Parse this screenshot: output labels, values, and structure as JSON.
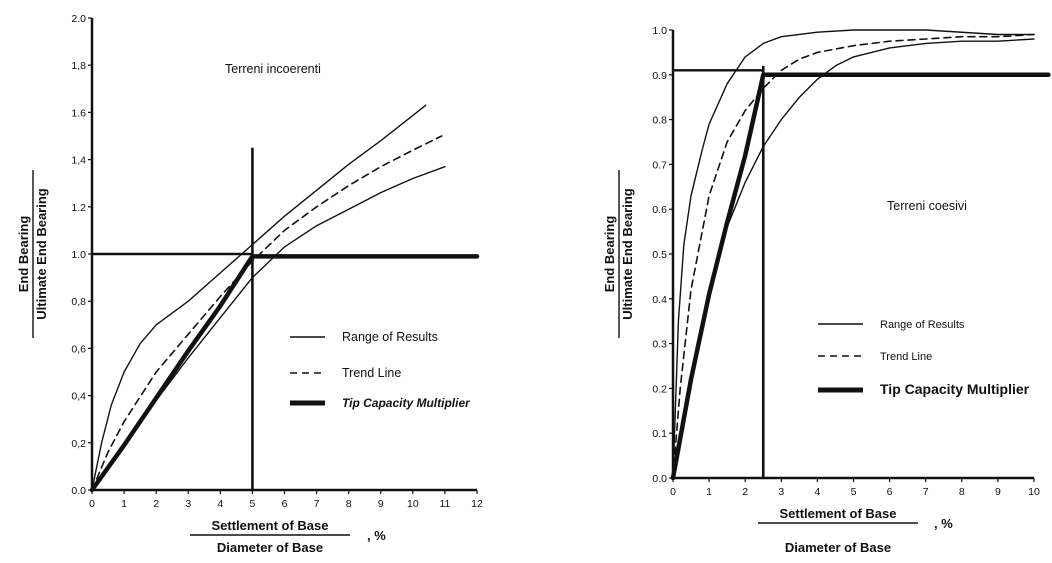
{
  "chart_data": [
    {
      "type": "line",
      "annotation": "Terreni incoerenti",
      "ylabel_top": "End Bearing",
      "ylabel_bottom": "Ultimate End Bearing",
      "xlabel_top": "Settlement of Base",
      "xlabel_bottom": "Diameter of Base",
      "xlabel_unit": ", %",
      "xlim": [
        0,
        12
      ],
      "ylim": [
        0,
        2.0
      ],
      "xticks": [
        "0",
        "1",
        "2",
        "3",
        "4",
        "5",
        "6",
        "7",
        "8",
        "9",
        "10",
        "11",
        "12"
      ],
      "yticks": [
        "0.0",
        "0,2",
        "0,4",
        "0,6",
        "0,8",
        "1.0",
        "1.2",
        "1,4",
        "1.6",
        "1,8",
        "2.0"
      ],
      "grid": false,
      "legend_position": "right",
      "legend": [
        "Range of Results",
        "Trend Line",
        "Tip Capacity Multiplier"
      ],
      "series": [
        {
          "name": "Range of Results",
          "style": "thin",
          "x": [
            0,
            0.3,
            0.6,
            1.0,
            1.5,
            2.0,
            3.0,
            4.0,
            5.0,
            6.0,
            7.0,
            8.0,
            9.0,
            10.4
          ],
          "y": [
            0,
            0.2,
            0.36,
            0.5,
            0.62,
            0.7,
            0.8,
            0.92,
            1.04,
            1.16,
            1.27,
            1.38,
            1.48,
            1.63
          ]
        },
        {
          "name": "Range of Results",
          "style": "thin",
          "x": [
            0,
            1.0,
            2.0,
            3.0,
            4.0,
            5.0,
            6.0,
            7.0,
            8.0,
            9.0,
            10.0,
            11.0
          ],
          "y": [
            0,
            0.19,
            0.38,
            0.56,
            0.73,
            0.9,
            1.03,
            1.12,
            1.19,
            1.26,
            1.32,
            1.37
          ]
        },
        {
          "name": "Trend Line",
          "style": "dashed",
          "x": [
            0,
            0.5,
            1.0,
            2.0,
            3.0,
            4.0,
            5.0,
            6.0,
            7.0,
            8.0,
            9.0,
            10.0,
            10.9
          ],
          "y": [
            0,
            0.16,
            0.29,
            0.5,
            0.66,
            0.82,
            0.97,
            1.1,
            1.2,
            1.29,
            1.37,
            1.44,
            1.5
          ]
        },
        {
          "name": "Tip Capacity Multiplier",
          "style": "thick",
          "x": [
            0,
            1.0,
            2.0,
            3.0,
            4.0,
            4.9,
            5.0,
            12
          ],
          "y": [
            0,
            0.19,
            0.39,
            0.59,
            0.78,
            0.97,
            0.99,
            0.99
          ]
        }
      ],
      "reference_lines": [
        {
          "orientation": "vertical",
          "x": 5.0,
          "y_range": [
            0,
            1.45
          ]
        },
        {
          "orientation": "horizontal",
          "y": 1.0,
          "x_range": [
            0,
            5.0
          ]
        }
      ]
    },
    {
      "type": "line",
      "annotation": "Terreni coesivi",
      "ylabel_top": "End Bearing",
      "ylabel_bottom": "Ultimate End Bearing",
      "xlabel_top": "Settlement of Base",
      "xlabel_bottom": "Diameter of Base",
      "xlabel_unit": ", %",
      "xlim": [
        0,
        10
      ],
      "ylim": [
        0,
        1.0
      ],
      "xticks": [
        "0",
        "1",
        "2",
        "3",
        "4",
        "5",
        "6",
        "7",
        "8",
        "9",
        "10"
      ],
      "yticks": [
        "0.0",
        "0.1",
        "0.2",
        "0.3",
        "0.4",
        "0.5",
        "0.6",
        "0.7",
        "0.8",
        "0.9",
        "1.0"
      ],
      "grid": false,
      "legend_position": "right",
      "legend": [
        "Range of Results",
        "Trend Line",
        "Tip Capacity Multiplier"
      ],
      "series": [
        {
          "name": "Range of Results",
          "style": "thin",
          "x": [
            0,
            0.15,
            0.3,
            0.5,
            0.8,
            1.0,
            1.5,
            2.0,
            2.5,
            3.0,
            4.0,
            5.0,
            7.0,
            9.0,
            10.0
          ],
          "y": [
            0,
            0.35,
            0.52,
            0.63,
            0.73,
            0.79,
            0.88,
            0.94,
            0.97,
            0.985,
            0.995,
            1.0,
            1.0,
            0.99,
            0.99
          ]
        },
        {
          "name": "Range of Results",
          "style": "thin",
          "x": [
            0,
            0.3,
            0.7,
            1.0,
            1.5,
            2.0,
            2.5,
            3.0,
            3.5,
            4.0,
            4.5,
            5.0,
            6.0,
            7.0,
            8.0,
            9.0,
            10.0
          ],
          "y": [
            0,
            0.14,
            0.3,
            0.41,
            0.56,
            0.66,
            0.74,
            0.8,
            0.85,
            0.89,
            0.92,
            0.94,
            0.96,
            0.97,
            0.975,
            0.975,
            0.98
          ]
        },
        {
          "name": "Trend Line",
          "style": "dashed",
          "x": [
            0,
            0.2,
            0.5,
            1.0,
            1.5,
            2.0,
            2.5,
            3.0,
            3.5,
            4.0,
            5.0,
            6.0,
            7.0,
            8.0,
            9.0,
            10.0
          ],
          "y": [
            0,
            0.2,
            0.42,
            0.63,
            0.75,
            0.82,
            0.87,
            0.91,
            0.935,
            0.95,
            0.965,
            0.975,
            0.98,
            0.985,
            0.985,
            0.99
          ]
        },
        {
          "name": "Tip Capacity Multiplier",
          "style": "thick",
          "x": [
            0,
            0.5,
            1.0,
            1.5,
            2.0,
            2.5,
            10.4
          ],
          "y": [
            0,
            0.22,
            0.41,
            0.57,
            0.72,
            0.9,
            0.9
          ]
        }
      ],
      "reference_lines": [
        {
          "orientation": "vertical",
          "x": 2.5,
          "y_range": [
            0,
            0.92
          ]
        },
        {
          "orientation": "horizontal",
          "y": 0.91,
          "x_range": [
            0,
            2.5
          ]
        }
      ]
    }
  ]
}
